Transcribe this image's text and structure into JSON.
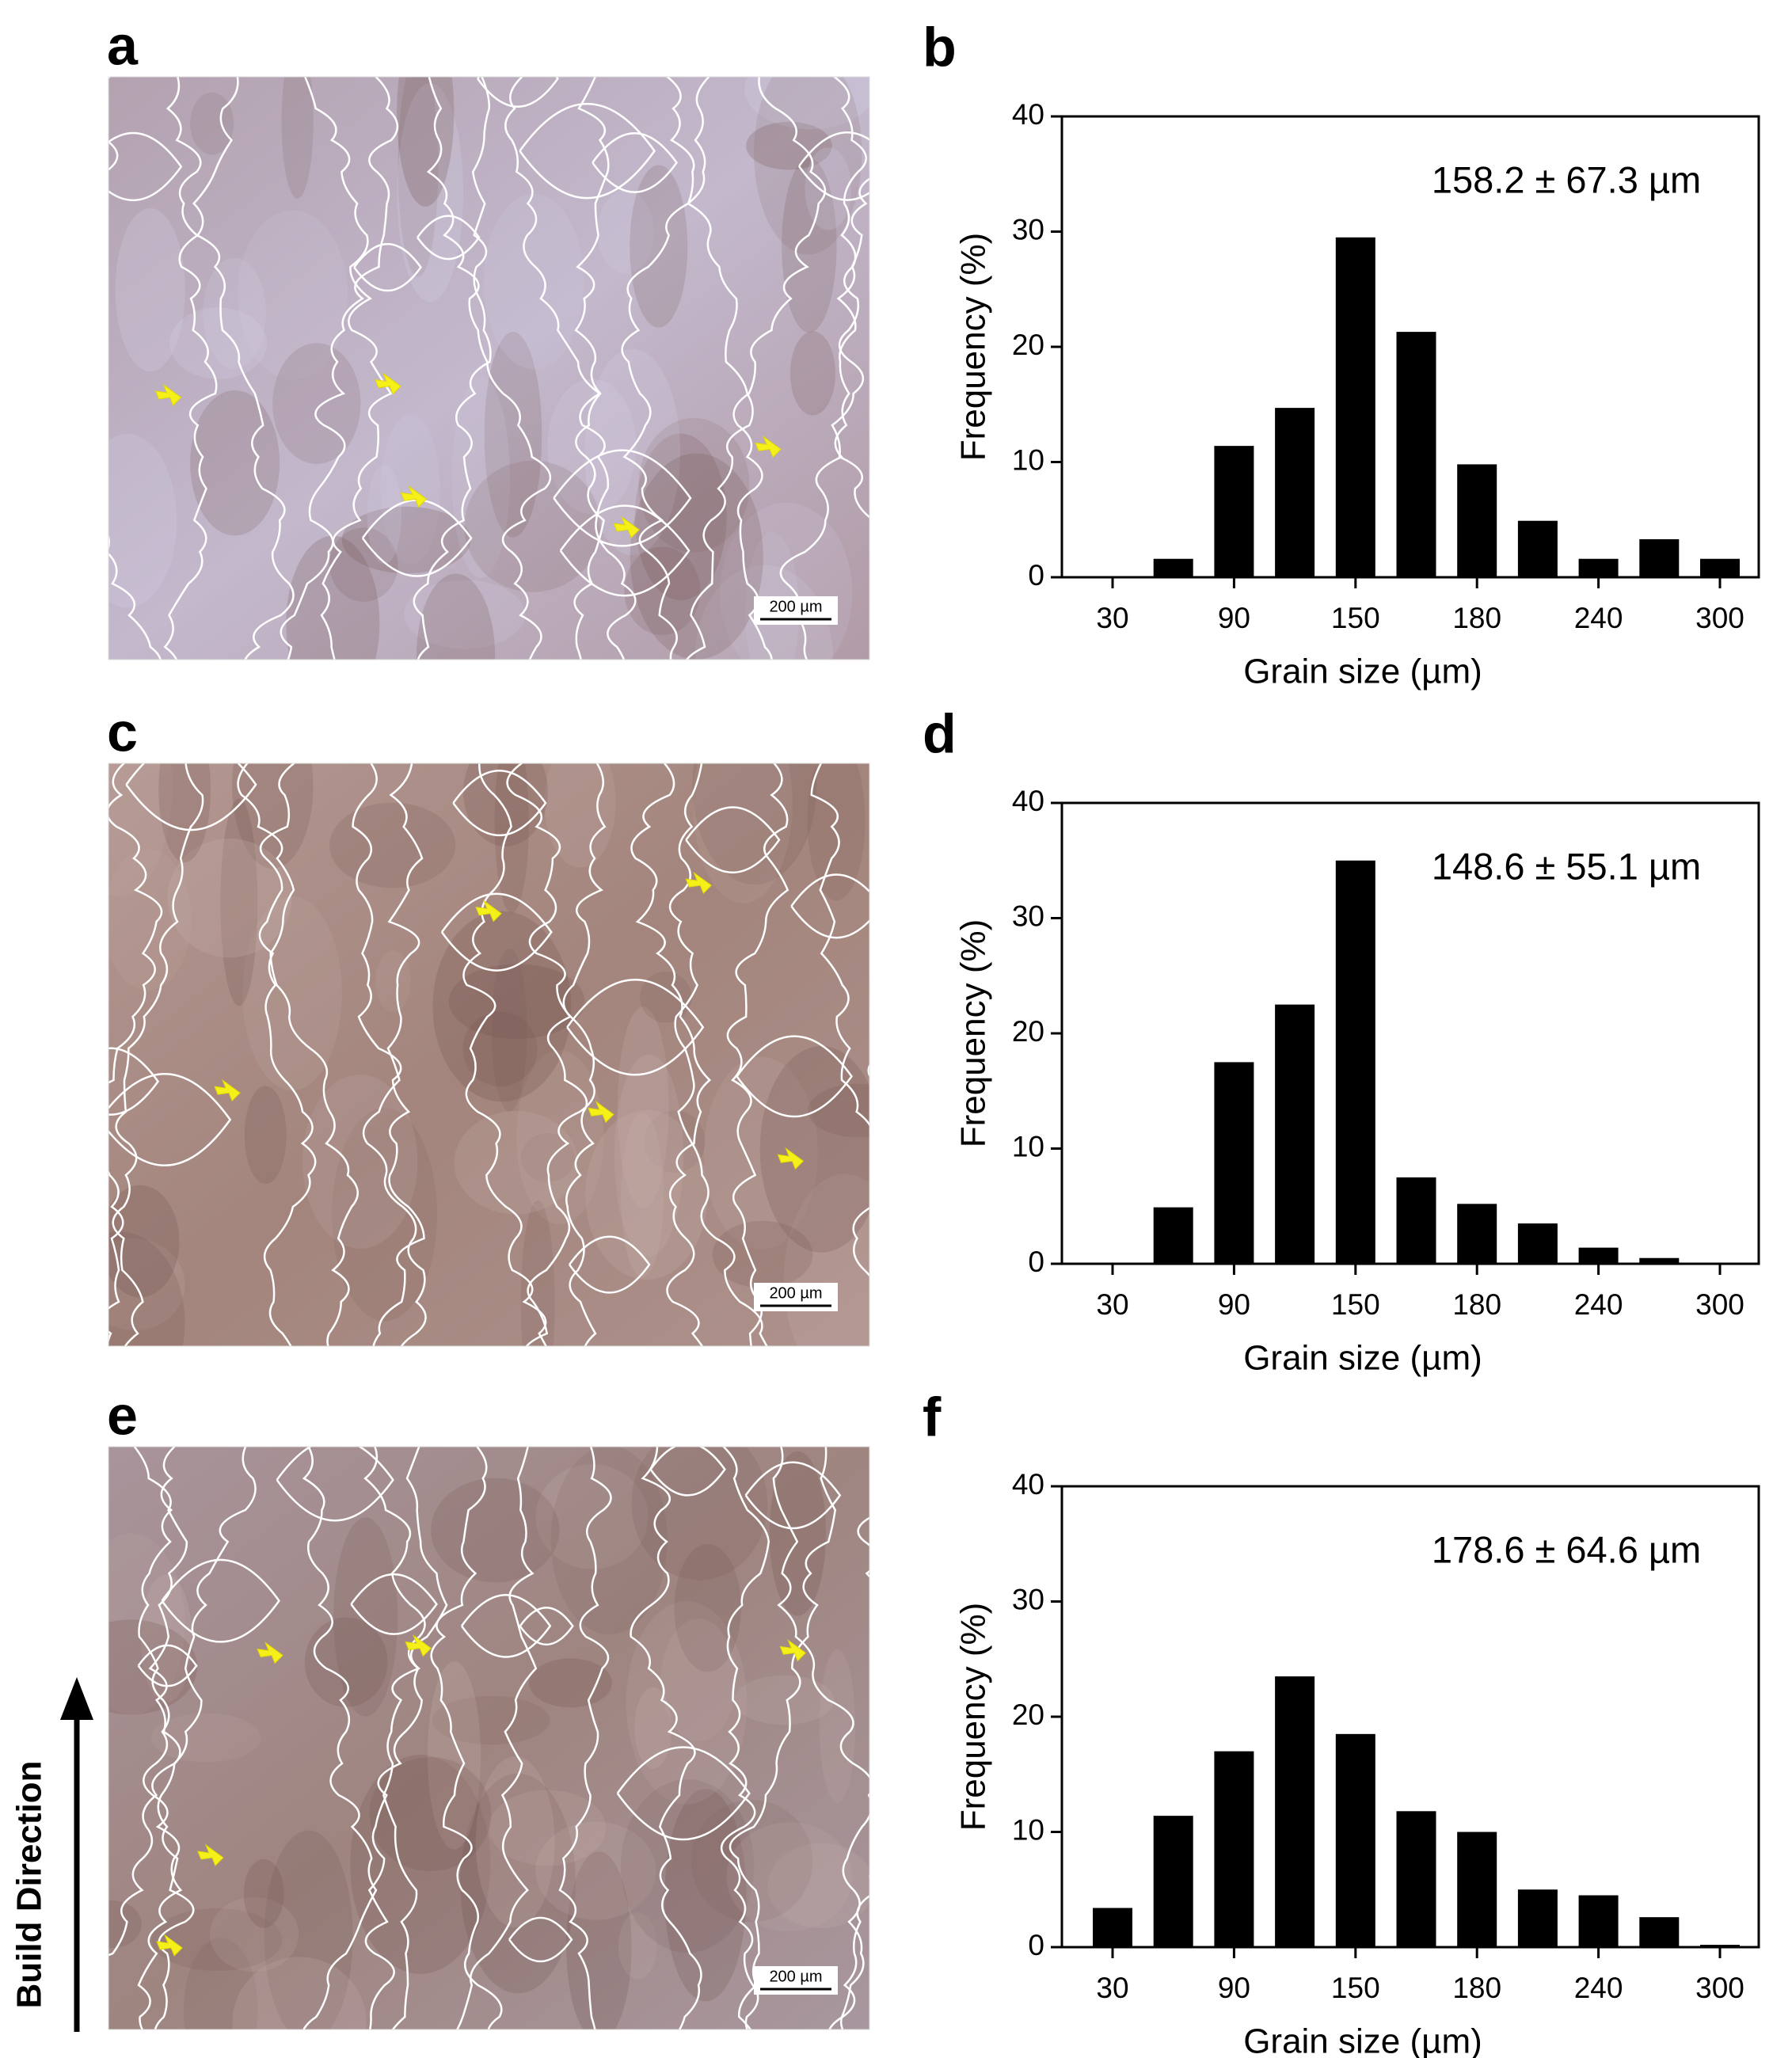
{
  "micrographs": [
    {
      "label": "a",
      "scale_bar": "200 µm"
    },
    {
      "label": "c",
      "scale_bar": "200 µm"
    },
    {
      "label": "e",
      "scale_bar": "200 µm"
    }
  ],
  "build_direction": "Build Direction",
  "chart_data": [
    {
      "type": "bar",
      "label": "b",
      "annotation": "158.2 ± 67.3 µm",
      "x_label": "Grain size (µm)",
      "y_label": "Frequency (%)",
      "categories": [
        30,
        null,
        90,
        null,
        150,
        null,
        180,
        null,
        240,
        null,
        300
      ],
      "values": [
        0,
        1.6,
        11.4,
        14.7,
        29.5,
        21.3,
        9.8,
        4.9,
        1.6,
        3.3,
        1.6
      ],
      "color": "#000000",
      "ylim": [
        0,
        40
      ],
      "yticks": [
        0,
        10,
        20,
        30,
        40
      ]
    },
    {
      "type": "bar",
      "label": "d",
      "annotation": "148.6 ± 55.1 µm",
      "x_label": "Grain size (µm)",
      "y_label": "Frequency (%)",
      "categories": [
        30,
        null,
        90,
        null,
        150,
        null,
        180,
        null,
        240,
        null,
        300
      ],
      "values": [
        0,
        4.9,
        17.5,
        22.5,
        35.0,
        7.5,
        5.2,
        3.5,
        1.4,
        0.5,
        0
      ],
      "color": "#000000",
      "ylim": [
        0,
        40
      ],
      "yticks": [
        0,
        10,
        20,
        30,
        40
      ]
    },
    {
      "type": "bar",
      "label": "f",
      "annotation": "178.6 ± 64.6 µm",
      "x_label": "Grain size (µm)",
      "y_label": "Frequency (%)",
      "categories": [
        30,
        null,
        90,
        null,
        150,
        null,
        180,
        null,
        240,
        null,
        300
      ],
      "values": [
        3.4,
        11.4,
        17.0,
        23.5,
        18.5,
        11.8,
        10.0,
        5.0,
        4.5,
        2.6,
        0.2
      ],
      "color": "#000000",
      "ylim": [
        0,
        40
      ],
      "yticks": [
        0,
        10,
        20,
        30,
        40
      ]
    }
  ]
}
